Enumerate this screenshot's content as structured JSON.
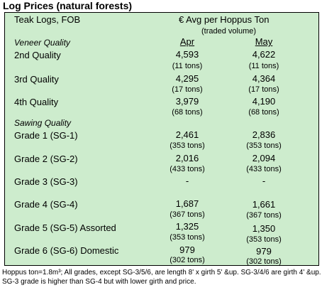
{
  "title": "Log Prices (natural forests)",
  "header": {
    "left": "Teak Logs, FOB",
    "right": "€ Avg per Hoppus Ton",
    "sub": "(traded volume)",
    "col1": "Apr",
    "col2": "May"
  },
  "sections": [
    {
      "label": "Veneer Quality",
      "rows": [
        {
          "name": "2nd Quality",
          "apr": "4,593",
          "apr_vol": "(11 tons)",
          "may": "4,622",
          "may_vol": "(11 tons)"
        },
        {
          "name": "3rd Quality",
          "apr": "4,295",
          "apr_vol": "(17 tons)",
          "may": "4,364",
          "may_vol": "(17 tons)"
        },
        {
          "name": "4th Quality",
          "apr": "3,979",
          "apr_vol": "(68 tons)",
          "may": "4,190",
          "may_vol": "(68 tons)"
        }
      ]
    },
    {
      "label": "Sawing Quality",
      "rows": [
        {
          "name": "Grade 1 (SG-1)",
          "apr": "2,461",
          "apr_vol": "(353 tons)",
          "may": "2,836",
          "may_vol": "(353 tons)"
        },
        {
          "name": "Grade 2 (SG-2)",
          "apr": "2,016",
          "apr_vol": "(433 tons)",
          "may": "2,094",
          "may_vol": "(433 tons)"
        },
        {
          "name": "Grade 3 (SG-3)",
          "apr": "-",
          "apr_vol": "",
          "may": "-",
          "may_vol": ""
        },
        {
          "name": "Grade 4 (SG-4)",
          "apr": "1,687",
          "apr_vol": "(367 tons)",
          "may": "1,661",
          "may_vol": "(367 tons)"
        },
        {
          "name": "Grade 5 (SG-5) Assorted",
          "apr": "1,325",
          "apr_vol": "(353 tons)",
          "may": "1,350",
          "may_vol": "(353 tons)"
        },
        {
          "name": "Grade 6 (SG-6) Domestic",
          "apr": "979",
          "apr_vol": "(302 tons)",
          "may": "979",
          "may_vol": "(302 tons)"
        }
      ]
    }
  ],
  "footnote": "Hoppus ton=1.8m³; All grades, except SG-3/5/6, are length 8' x girth 5' &up. SG-3/4/6 are girth 4' &up. SG-3 grade is higher than SG-4 but with lower girth and price."
}
